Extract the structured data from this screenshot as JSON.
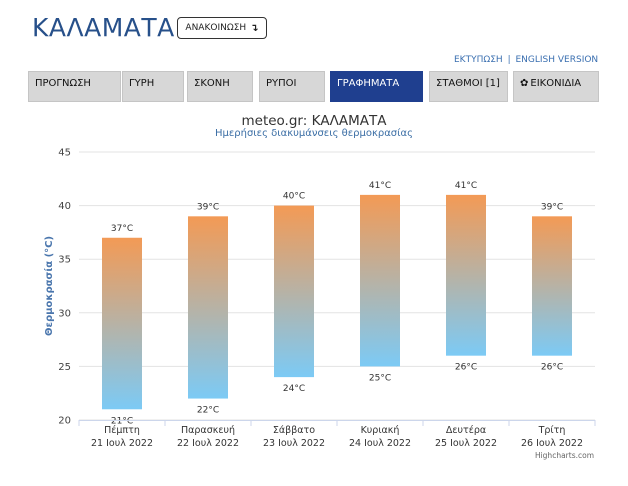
{
  "header": {
    "city": "ΚΑΛΑΜΑΤΑ",
    "announce_label": "ΑΝΑΚΟΙΝΩΣΗ",
    "announce_arrow": "↴"
  },
  "top_links": {
    "print": "ΕΚΤΥΠΩΣΗ",
    "separator": "|",
    "english": "ENGLISH VERSION"
  },
  "tabs": [
    {
      "label": "ΠΡΟΓΝΩΣΗ",
      "active": false
    },
    {
      "label": "ΓΥΡΗ",
      "active": false
    },
    {
      "label": "ΣΚΟΝΗ",
      "active": false
    },
    {
      "label": "ΡΥΠΟΙ",
      "active": false
    },
    {
      "label": "ΓΡΑΦΗΜΑΤΑ",
      "active": true
    },
    {
      "label": "ΣΤΑΘΜΟΙ [1]",
      "active": false
    },
    {
      "label": "ΕΙΚΟΝΙΔΙΑ",
      "active": false,
      "icon": "gear-icon"
    }
  ],
  "chart_data": {
    "type": "bar",
    "subtype": "columnrange",
    "title": "meteo.gr: ΚΑΛΑΜΑΤΑ",
    "subtitle": "Ημερήσιες διακυμάνσεις θερμοκρασίας",
    "ylabel": "Θερμοκρασία (°C)",
    "ylim": [
      20,
      45
    ],
    "yticks": [
      20,
      25,
      30,
      35,
      40,
      45
    ],
    "grid": true,
    "categories": [
      {
        "day": "Πέμπτη",
        "date": "21 Ιουλ 2022"
      },
      {
        "day": "Παρασκευή",
        "date": "22 Ιουλ 2022"
      },
      {
        "day": "Σάββατο",
        "date": "23 Ιουλ 2022"
      },
      {
        "day": "Κυριακή",
        "date": "24 Ιουλ 2022"
      },
      {
        "day": "Δευτέρα",
        "date": "25 Ιουλ 2022"
      },
      {
        "day": "Τρίτη",
        "date": "26 Ιουλ 2022"
      }
    ],
    "series": [
      {
        "low": [
          21,
          22,
          24,
          25,
          26,
          26
        ],
        "high": [
          37,
          39,
          40,
          41,
          41,
          39
        ]
      }
    ],
    "unit_suffix": "°C",
    "colors": {
      "top": "#f39a55",
      "bottom": "#7ccaf5",
      "grid": "#e3e3e3",
      "axis_label": "#4a76ad"
    }
  },
  "credits": "Highcharts.com"
}
